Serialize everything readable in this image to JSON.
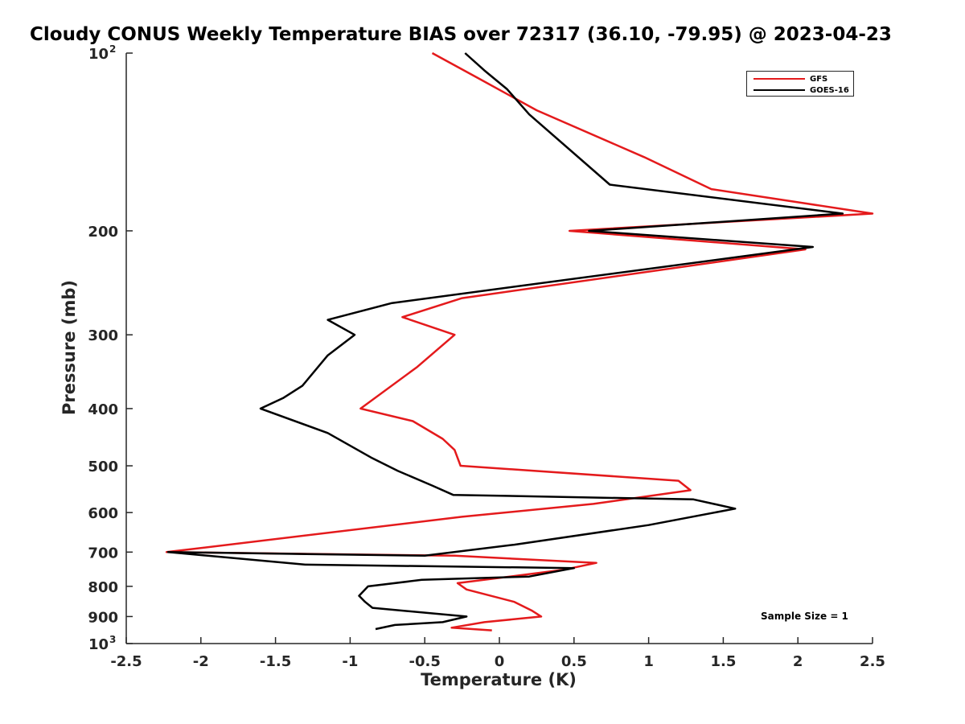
{
  "chart_data": {
    "type": "line",
    "title": "Cloudy CONUS Weekly Temperature BIAS over 72317 (36.10, -79.95) @ 2023-04-23",
    "xlabel": "Temperature (K)",
    "ylabel": "Pressure (mb)",
    "xlim": [
      -2.5,
      2.5
    ],
    "ylim": [
      100,
      1000
    ],
    "y_scale": "log",
    "y_reversed": true,
    "x_ticks": [
      "-2.5",
      "-2",
      "-1.5",
      "-1",
      "-0.5",
      "0",
      "0.5",
      "1",
      "1.5",
      "2",
      "2.5"
    ],
    "y_ticks": [
      {
        "value": 100,
        "base": "10",
        "exp": "2"
      },
      {
        "value": 200,
        "label": "200"
      },
      {
        "value": 300,
        "label": "300"
      },
      {
        "value": 400,
        "label": "400"
      },
      {
        "value": 500,
        "label": "500"
      },
      {
        "value": 600,
        "label": "600"
      },
      {
        "value": 700,
        "label": "700"
      },
      {
        "value": 800,
        "label": "800"
      },
      {
        "value": 900,
        "label": "900"
      },
      {
        "value": 1000,
        "base": "10",
        "exp": "3"
      }
    ],
    "grid": false,
    "legend_position": "top-right",
    "annotation": "Sample Size = 1",
    "series": [
      {
        "name": "GFS",
        "color": "#e41a1c",
        "points": [
          [
            -0.45,
            100
          ],
          [
            -0.15,
            110
          ],
          [
            0.25,
            125
          ],
          [
            0.97,
            150
          ],
          [
            1.42,
            170
          ],
          [
            2.5,
            187
          ],
          [
            0.47,
            200
          ],
          [
            2.05,
            215
          ],
          [
            -0.25,
            260
          ],
          [
            -0.65,
            280
          ],
          [
            -0.3,
            300
          ],
          [
            -0.55,
            340
          ],
          [
            -0.93,
            400
          ],
          [
            -0.58,
            420
          ],
          [
            -0.38,
            450
          ],
          [
            -0.3,
            470
          ],
          [
            -0.26,
            500
          ],
          [
            1.2,
            530
          ],
          [
            1.28,
            550
          ],
          [
            0.63,
            580
          ],
          [
            -0.25,
            610
          ],
          [
            -2.23,
            700
          ],
          [
            -0.3,
            710
          ],
          [
            0.65,
            730
          ],
          [
            0.43,
            750
          ],
          [
            -0.28,
            790
          ],
          [
            -0.22,
            810
          ],
          [
            0.1,
            850
          ],
          [
            0.22,
            880
          ],
          [
            0.28,
            900
          ],
          [
            -0.1,
            920
          ],
          [
            -0.32,
            940
          ],
          [
            -0.05,
            950
          ]
        ]
      },
      {
        "name": "GOES-16",
        "color": "#000000",
        "points": [
          [
            -0.23,
            100
          ],
          [
            -0.1,
            107
          ],
          [
            0.05,
            115
          ],
          [
            0.2,
            127
          ],
          [
            0.74,
            167
          ],
          [
            2.3,
            187
          ],
          [
            0.6,
            200
          ],
          [
            2.1,
            213
          ],
          [
            -0.72,
            265
          ],
          [
            -1.15,
            283
          ],
          [
            -0.97,
            300
          ],
          [
            -1.15,
            325
          ],
          [
            -1.32,
            366
          ],
          [
            -1.45,
            384
          ],
          [
            -1.6,
            400
          ],
          [
            -1.15,
            440
          ],
          [
            -0.86,
            484
          ],
          [
            -0.68,
            510
          ],
          [
            -0.45,
            540
          ],
          [
            -0.31,
            560
          ],
          [
            1.3,
            570
          ],
          [
            1.58,
            591
          ],
          [
            1.0,
            630
          ],
          [
            0.1,
            680
          ],
          [
            -0.5,
            710
          ],
          [
            -2.22,
            700
          ],
          [
            -1.3,
            735
          ],
          [
            0.5,
            745
          ],
          [
            0.2,
            770
          ],
          [
            -0.52,
            780
          ],
          [
            -0.88,
            800
          ],
          [
            -0.94,
            830
          ],
          [
            -0.9,
            850
          ],
          [
            -0.85,
            870
          ],
          [
            -0.22,
            900
          ],
          [
            -0.38,
            920
          ],
          [
            -0.7,
            930
          ],
          [
            -0.83,
            945
          ]
        ]
      }
    ]
  }
}
